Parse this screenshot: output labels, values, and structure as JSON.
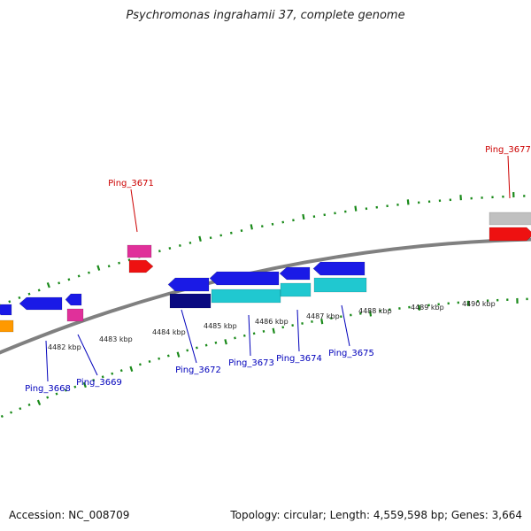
{
  "title": "Psychromonas ingrahamii 37, complete genome",
  "footer": {
    "accession": "Accession: NC_008709",
    "stats": "Topology: circular; Length: 4,559,598 bp; Genes: 3,664"
  },
  "colors": {
    "backbone": "#808080",
    "blue": "#1a1ae6",
    "navy": "#0a0a80",
    "cyan": "#20c8d0",
    "pink": "#e0309a",
    "red": "#ee1111",
    "gray": "#c0c0c0",
    "orange": "#ff9900",
    "tick": "#1a8a1a",
    "label_forward": "#cc0000",
    "label_reverse": "#0000bb"
  },
  "ticks": {
    "labels": [
      "4482 kbp",
      "4483 kbp",
      "4484 kbp",
      "4485 kbp",
      "4486 kbp",
      "4487 kbp",
      "4488 kbp",
      "4489 kbp",
      "4490 kbp"
    ]
  },
  "genes": {
    "forward_labels": [
      "Ping_3671",
      "Ping_3677"
    ],
    "reverse_labels": [
      "Ping_3668",
      "Ping_3669",
      "Ping_3672",
      "Ping_3673",
      "Ping_3674",
      "Ping_3675"
    ]
  }
}
